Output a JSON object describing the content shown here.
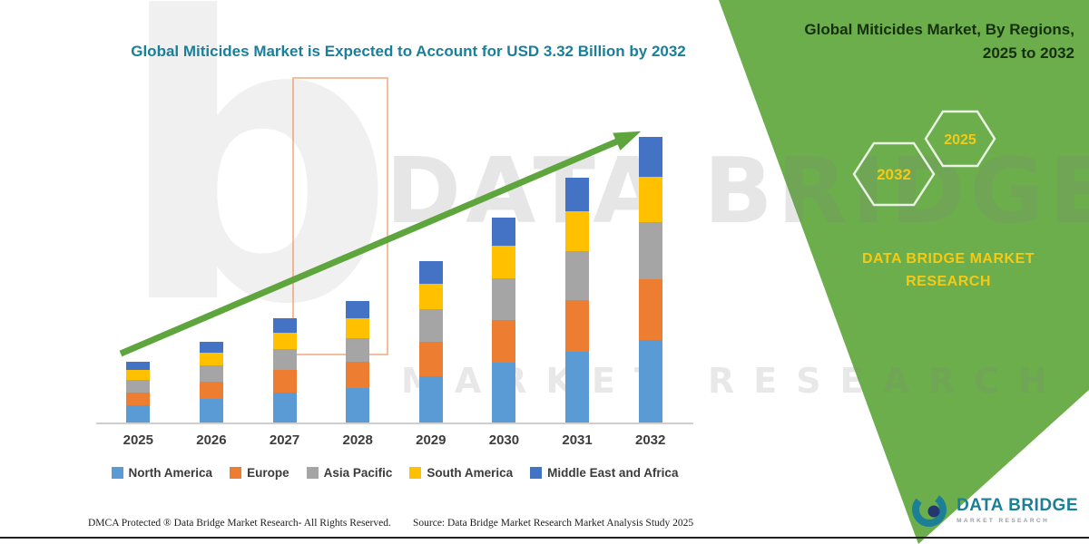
{
  "page": {
    "title": "Global Miticides Market is Expected to Account for USD 3.32 Billion by 2032"
  },
  "side_panel": {
    "heading_line1": "Global Miticides Market, By Regions,",
    "heading_line2": "2025 to 2032",
    "hexagon_left": "2032",
    "hexagon_right": "2025",
    "brand_line1": "DATA BRIDGE MARKET",
    "brand_line2": "RESEARCH",
    "panel_color": "#6cae4b",
    "accent_yellow": "#f6c915"
  },
  "watermark": {
    "logo_letter": "b",
    "brand": "DATA BRIDGE",
    "subtitle": "MARKET RESEARCH"
  },
  "chart_data": {
    "type": "bar",
    "stacked": true,
    "unit": "USD Billion (estimated from title: USD 3.32 Billion by 2032)",
    "categories": [
      "2025",
      "2026",
      "2027",
      "2028",
      "2029",
      "2030",
      "2031",
      "2032"
    ],
    "series": [
      {
        "name": "North America",
        "color": "#5b9bd5",
        "values": [
          0.21,
          0.28,
          0.36,
          0.41,
          0.55,
          0.7,
          0.83,
          0.97
        ]
      },
      {
        "name": "Europe",
        "color": "#ed7d31",
        "values": [
          0.15,
          0.2,
          0.26,
          0.3,
          0.4,
          0.5,
          0.6,
          0.7
        ]
      },
      {
        "name": "Asia Pacific",
        "color": "#a5a5a5",
        "values": [
          0.14,
          0.19,
          0.24,
          0.28,
          0.37,
          0.48,
          0.57,
          0.66
        ]
      },
      {
        "name": "South America",
        "color": "#ffc000",
        "values": [
          0.12,
          0.15,
          0.19,
          0.23,
          0.3,
          0.38,
          0.46,
          0.53
        ]
      },
      {
        "name": "Middle East and Africa",
        "color": "#4472c4",
        "values": [
          0.1,
          0.13,
          0.17,
          0.2,
          0.26,
          0.33,
          0.39,
          0.46
        ]
      }
    ],
    "totals": [
      0.72,
      0.95,
      1.22,
      1.42,
      1.88,
      2.39,
      2.85,
      3.32
    ],
    "ylim": [
      0,
      3.5
    ],
    "grid": false,
    "legend_position": "bottom",
    "trend_arrow": true,
    "arrow_color": "#5fa53e"
  },
  "footer": {
    "dmca": "DMCA Protected ® Data Bridge Market Research-  All Rights Reserved.",
    "source": "Source: Data Bridge Market Research  Market Analysis Study 2025"
  },
  "logo": {
    "name": "DATA BRIDGE",
    "tagline": "MARKET RESEARCH"
  }
}
